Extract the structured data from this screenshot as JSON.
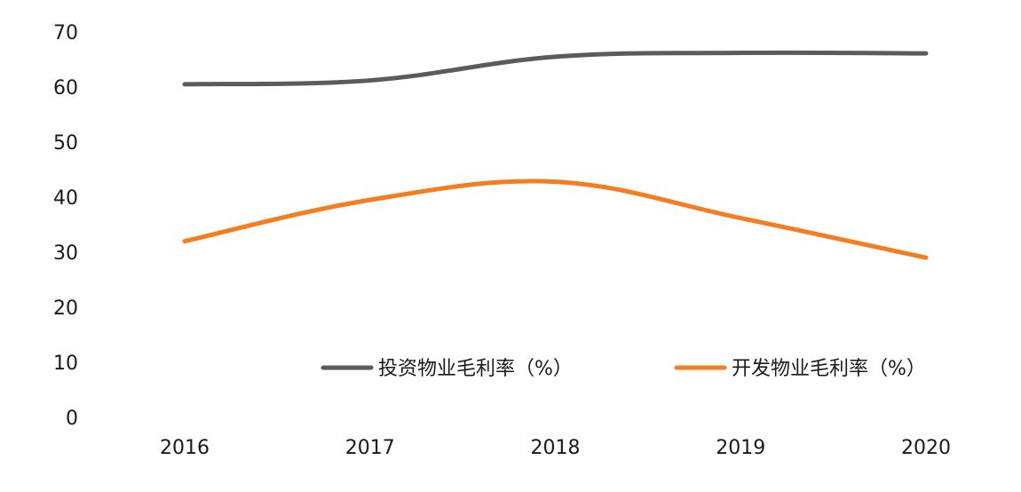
{
  "chart_data": {
    "type": "line",
    "categories": [
      "2016",
      "2017",
      "2018",
      "2019",
      "2020"
    ],
    "ylim": [
      0,
      70
    ],
    "yticks": [
      0,
      10,
      20,
      30,
      40,
      50,
      60,
      70
    ],
    "grid": false,
    "legend_position": "bottom-right",
    "series": [
      {
        "name": "投资物业毛利率（%）",
        "color": "#5b5b5b",
        "values": [
          60.5,
          61.2,
          65.5,
          66.2,
          66.1
        ]
      },
      {
        "name": "开发物业毛利率（%）",
        "color": "#f57c1f",
        "values": [
          32.0,
          39.5,
          42.8,
          36.2,
          29.0
        ]
      }
    ]
  }
}
